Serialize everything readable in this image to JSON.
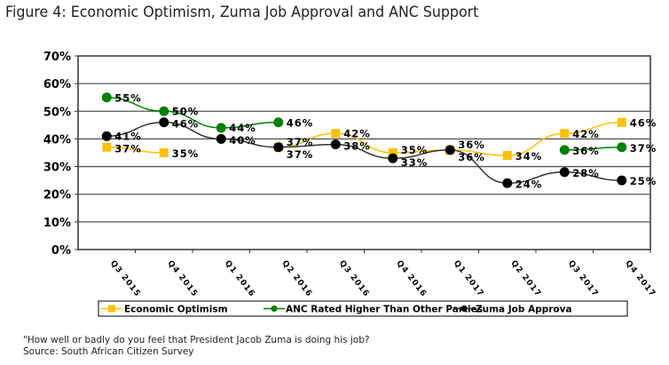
{
  "title": "Figure 4: Economic Optimism, Zuma Job Approval and ANC Support",
  "chart_data": {
    "type": "line",
    "categories": [
      "Q3 2015",
      "Q4 2015",
      "Q1 2016",
      "Q2 2016",
      "Q3 2016",
      "Q4 2016",
      "Q1 2017",
      "Q2 2017",
      "Q3 2017",
      "Q4 2017"
    ],
    "ylim": [
      0,
      70
    ],
    "yticks": [
      0,
      10,
      20,
      30,
      40,
      50,
      60,
      70
    ],
    "ytick_labels": [
      "0%",
      "10%",
      "20%",
      "30%",
      "40%",
      "50%",
      "60%",
      "70%"
    ],
    "grid": true,
    "legend_position": "bottom",
    "series": [
      {
        "name": "Economic Optimism",
        "color": "#FFC000",
        "marker": "square",
        "values": [
          37,
          35,
          null,
          37,
          42,
          35,
          36,
          34,
          42,
          46
        ]
      },
      {
        "name": "ANC Rated Higher Than Other Parties",
        "color": "#008000",
        "marker": "circle",
        "values": [
          55,
          50,
          44,
          46,
          null,
          null,
          null,
          null,
          36,
          37
        ]
      },
      {
        "name": "Zuma Job Approva",
        "color": "#000000",
        "marker": "circle",
        "values": [
          41,
          46,
          40,
          37,
          38,
          33,
          36,
          24,
          28,
          25
        ]
      }
    ]
  },
  "footnotes": {
    "question": "\"How well or badly do you feel that President Jacob Zuma is doing his job?",
    "source": "Source: South African Citizen Survey"
  }
}
